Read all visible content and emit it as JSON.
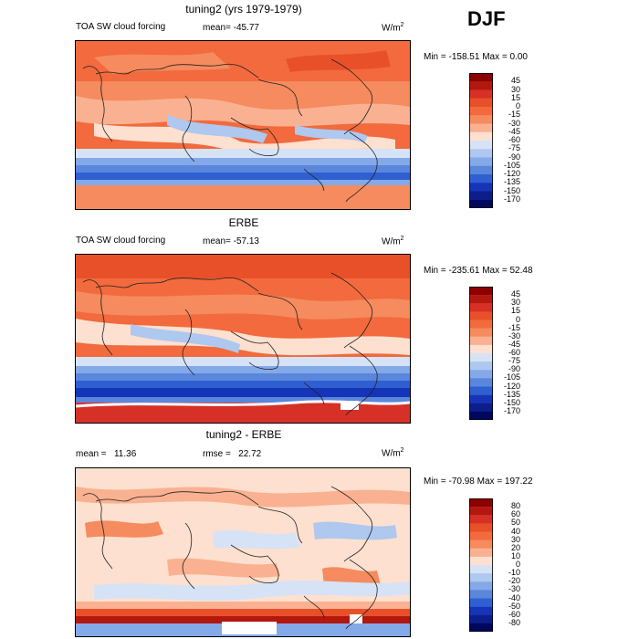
{
  "season": "DJF",
  "panels": [
    {
      "title": "tuning2 (yrs 1979-1979)",
      "field_label": "TOA SW cloud forcing",
      "mean_text": "mean= -45.77",
      "units_text": "W/m",
      "units_sup": "2",
      "minmax_text": "Min = -158.51  Max =    0.00",
      "colorbar_labels": [
        "45",
        "30",
        "15",
        "0",
        "-15",
        "-30",
        "-45",
        "-60",
        "-75",
        "-90",
        "-105",
        "-120",
        "-135",
        "-150",
        "-170"
      ],
      "colors": [
        "#8b0000",
        "#b2180e",
        "#d73027",
        "#e8502a",
        "#f26a3d",
        "#f58b5e",
        "#fab191",
        "#fde0cf",
        "#d6e2f6",
        "#aec8ef",
        "#84a9e8",
        "#5a86dc",
        "#2f5fd1",
        "#1534b8",
        "#0b1e8c",
        "#00085e"
      ]
    },
    {
      "title": "ERBE",
      "field_label": "TOA SW cloud forcing",
      "mean_text": "mean= -57.13",
      "units_text": "W/m",
      "units_sup": "2",
      "minmax_text": "Min = -235.61  Max =  52.48",
      "colorbar_labels": [
        "45",
        "30",
        "15",
        "0",
        "-15",
        "-30",
        "-45",
        "-60",
        "-75",
        "-90",
        "-105",
        "-120",
        "-135",
        "-150",
        "-170"
      ],
      "colors": [
        "#8b0000",
        "#b2180e",
        "#d73027",
        "#e8502a",
        "#f26a3d",
        "#f58b5e",
        "#fab191",
        "#fde0cf",
        "#d6e2f6",
        "#aec8ef",
        "#84a9e8",
        "#5a86dc",
        "#2f5fd1",
        "#1534b8",
        "#0b1e8c",
        "#00085e"
      ]
    },
    {
      "title": "tuning2 - ERBE",
      "field_label": "mean =   11.36",
      "mean_text": "rmse =   22.72",
      "units_text": "W/m",
      "units_sup": "2",
      "minmax_text": "Min = -70.98  Max = 197.22",
      "colorbar_labels": [
        "80",
        "60",
        "50",
        "40",
        "30",
        "20",
        "10",
        "0",
        "-10",
        "-20",
        "-30",
        "-40",
        "-50",
        "-60",
        "-80"
      ],
      "colors": [
        "#8b0000",
        "#b2180e",
        "#d73027",
        "#e8502a",
        "#f26a3d",
        "#f58b5e",
        "#fab191",
        "#fde0cf",
        "#d6e2f6",
        "#aec8ef",
        "#84a9e8",
        "#5a86dc",
        "#2f5fd1",
        "#1534b8",
        "#0b1e8c",
        "#00085e"
      ]
    }
  ]
}
